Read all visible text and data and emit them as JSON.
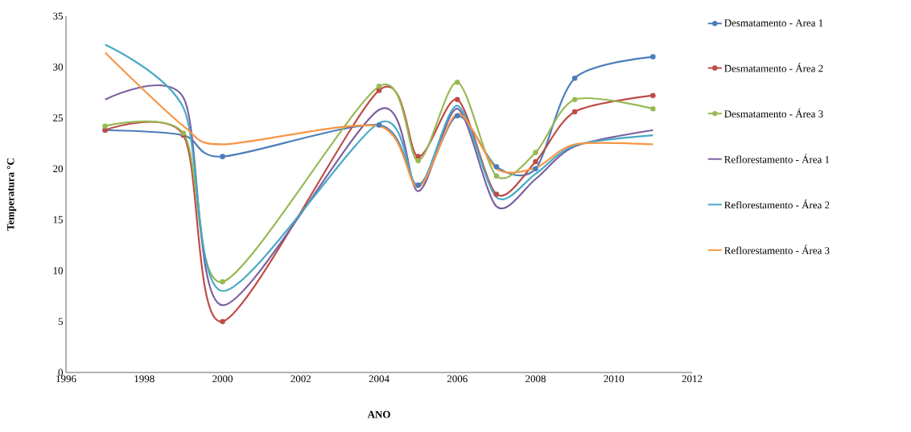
{
  "chart_data": {
    "type": "line",
    "xlabel": "ANO",
    "ylabel": "Temperatura °C",
    "x": [
      1997,
      1999,
      2000,
      2004,
      2005,
      2006,
      2007,
      2008,
      2009,
      2011
    ],
    "xlim": [
      1996,
      2012
    ],
    "xticks": [
      1996,
      1998,
      2000,
      2002,
      2004,
      2006,
      2008,
      2010,
      2012
    ],
    "ylim": [
      0,
      35
    ],
    "yticks": [
      0,
      5,
      10,
      15,
      20,
      25,
      30,
      35
    ],
    "grid": false,
    "legend": "right",
    "line_style": "solid",
    "series": [
      {
        "name": "Desmatamento - Area 1",
        "color": "#4a7ebb",
        "marker": "circle",
        "values": [
          23.8,
          23.3,
          21.2,
          24.3,
          18.4,
          25.2,
          20.2,
          20.0,
          28.9,
          31.0
        ]
      },
      {
        "name": "Desmatamento - Área 2",
        "color": "#be4b48",
        "marker": "circle",
        "values": [
          23.8,
          23.3,
          5.0,
          27.7,
          21.2,
          26.8,
          17.5,
          20.7,
          25.6,
          27.2
        ]
      },
      {
        "name": "Desmatamento - Área 3",
        "color": "#98b954",
        "marker": "circle",
        "values": [
          24.2,
          23.5,
          8.9,
          28.1,
          20.8,
          28.5,
          19.3,
          21.6,
          26.8,
          25.9
        ]
      },
      {
        "name": "Reflorestamento - Área 1",
        "color": "#7d60a0",
        "marker": "none",
        "values": [
          26.8,
          27.0,
          6.6,
          25.8,
          17.8,
          25.9,
          16.3,
          19.0,
          22.2,
          23.8
        ]
      },
      {
        "name": "Reflorestamento - Área 2",
        "color": "#46aac5",
        "marker": "none",
        "values": [
          32.2,
          26.0,
          8.0,
          24.5,
          18.2,
          26.2,
          17.2,
          19.5,
          22.3,
          23.3
        ]
      },
      {
        "name": "Reflorestamento - Área 3",
        "color": "#f79646",
        "marker": "none",
        "values": [
          31.4,
          24.2,
          22.4,
          24.2,
          18.2,
          25.4,
          20.0,
          20.1,
          22.4,
          22.4
        ]
      }
    ]
  }
}
